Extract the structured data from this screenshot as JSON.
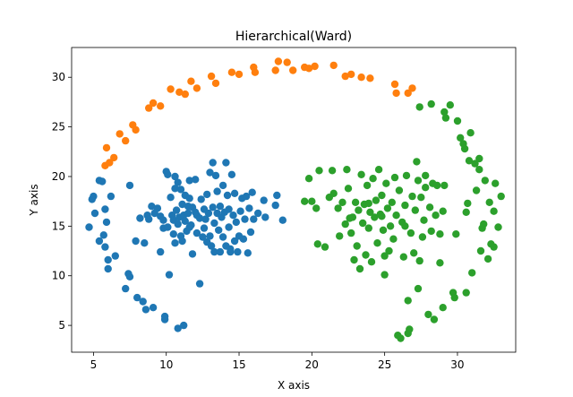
{
  "chart_data": {
    "type": "scatter",
    "title": "Hierarchical(Ward)",
    "xlabel": "X axis",
    "ylabel": "Y axis",
    "xlim": [
      3.5,
      34.0
    ],
    "ylim": [
      2.3,
      33.0
    ],
    "xticks": [
      5,
      10,
      15,
      20,
      25,
      30
    ],
    "yticks": [
      5,
      10,
      15,
      20,
      25,
      30
    ],
    "grid": false,
    "legend": "none",
    "series": [
      {
        "color": "#1f77b4",
        "points": [
          [
            4.7,
            14.9
          ],
          [
            4.9,
            17.7
          ],
          [
            5.0,
            18.0
          ],
          [
            5.1,
            16.3
          ],
          [
            5.4,
            19.6
          ],
          [
            5.6,
            19.5
          ],
          [
            5.4,
            13.5
          ],
          [
            5.7,
            14.1
          ],
          [
            5.8,
            12.9
          ],
          [
            5.8,
            16.7
          ],
          [
            5.9,
            15.4
          ],
          [
            6.0,
            11.6
          ],
          [
            6.0,
            10.7
          ],
          [
            6.2,
            18.0
          ],
          [
            6.5,
            12.0
          ],
          [
            7.2,
            8.7
          ],
          [
            7.4,
            10.2
          ],
          [
            7.5,
            9.9
          ],
          [
            7.5,
            19.1
          ],
          [
            7.9,
            13.5
          ],
          [
            8.0,
            7.8
          ],
          [
            8.4,
            7.4
          ],
          [
            8.6,
            6.6
          ],
          [
            9.1,
            6.8
          ],
          [
            9.9,
            5.6
          ],
          [
            9.9,
            5.9
          ],
          [
            10.8,
            4.7
          ],
          [
            11.2,
            5.0
          ],
          [
            8.2,
            15.8
          ],
          [
            8.5,
            13.3
          ],
          [
            8.7,
            16.1
          ],
          [
            8.8,
            15.7
          ],
          [
            9.0,
            17.0
          ],
          [
            9.2,
            16.3
          ],
          [
            9.4,
            16.8
          ],
          [
            9.6,
            16.0
          ],
          [
            9.6,
            12.4
          ],
          [
            9.8,
            14.8
          ],
          [
            9.8,
            15.6
          ],
          [
            10.0,
            20.5
          ],
          [
            10.1,
            20.2
          ],
          [
            10.1,
            14.9
          ],
          [
            10.2,
            10.1
          ],
          [
            10.3,
            17.9
          ],
          [
            10.4,
            16.1
          ],
          [
            10.5,
            15.6
          ],
          [
            10.5,
            14.2
          ],
          [
            10.6,
            20.0
          ],
          [
            10.6,
            18.8
          ],
          [
            10.7,
            16.6
          ],
          [
            10.8,
            19.4
          ],
          [
            10.8,
            15.2
          ],
          [
            10.9,
            15.9
          ],
          [
            11.0,
            18.7
          ],
          [
            11.0,
            14.0
          ],
          [
            11.1,
            17.2
          ],
          [
            11.1,
            13.5
          ],
          [
            11.2,
            16.1
          ],
          [
            11.3,
            18.1
          ],
          [
            11.3,
            15.5
          ],
          [
            11.4,
            14.5
          ],
          [
            11.5,
            17.0
          ],
          [
            11.5,
            16.3
          ],
          [
            11.6,
            19.6
          ],
          [
            11.6,
            17.8
          ],
          [
            11.7,
            15.1
          ],
          [
            11.8,
            16.9
          ],
          [
            11.8,
            12.2
          ],
          [
            12.0,
            19.7
          ],
          [
            12.0,
            16.4
          ],
          [
            12.1,
            14.3
          ],
          [
            12.1,
            16.1
          ],
          [
            12.3,
            15.8
          ],
          [
            12.3,
            9.2
          ],
          [
            12.4,
            17.7
          ],
          [
            12.5,
            13.9
          ],
          [
            12.6,
            16.7
          ],
          [
            12.6,
            14.8
          ],
          [
            12.7,
            15.7
          ],
          [
            12.8,
            18.2
          ],
          [
            12.8,
            13.4
          ],
          [
            12.9,
            16.3
          ],
          [
            13.0,
            20.4
          ],
          [
            13.0,
            14.0
          ],
          [
            13.1,
            13.0
          ],
          [
            13.2,
            21.4
          ],
          [
            13.2,
            16.9
          ],
          [
            13.3,
            12.4
          ],
          [
            13.3,
            15.3
          ],
          [
            13.4,
            20.1
          ],
          [
            13.5,
            18.5
          ],
          [
            13.5,
            16.3
          ],
          [
            13.6,
            14.6
          ],
          [
            13.7,
            17.0
          ],
          [
            13.7,
            12.4
          ],
          [
            13.8,
            15.9
          ],
          [
            13.9,
            19.1
          ],
          [
            13.9,
            13.9
          ],
          [
            14.0,
            16.4
          ],
          [
            14.1,
            13.0
          ],
          [
            14.1,
            21.4
          ],
          [
            14.2,
            18.1
          ],
          [
            14.3,
            14.9
          ],
          [
            14.3,
            16.7
          ],
          [
            14.4,
            12.7
          ],
          [
            14.5,
            20.2
          ],
          [
            14.6,
            16.1
          ],
          [
            14.7,
            13.5
          ],
          [
            14.7,
            18.3
          ],
          [
            14.8,
            15.4
          ],
          [
            14.9,
            12.4
          ],
          [
            15.0,
            14.0
          ],
          [
            15.1,
            16.5
          ],
          [
            15.2,
            17.8
          ],
          [
            15.3,
            13.7
          ],
          [
            15.4,
            15.7
          ],
          [
            15.5,
            18.0
          ],
          [
            15.6,
            12.3
          ],
          [
            15.7,
            16.8
          ],
          [
            15.8,
            14.4
          ],
          [
            15.9,
            18.4
          ],
          [
            16.0,
            15.7
          ],
          [
            16.3,
            16.3
          ],
          [
            16.7,
            17.6
          ],
          [
            16.8,
            15.9
          ],
          [
            17.5,
            17.1
          ],
          [
            17.6,
            18.1
          ],
          [
            18.0,
            15.6
          ],
          [
            14.4,
            12.4
          ],
          [
            11.6,
            14.9
          ],
          [
            10.6,
            13.3
          ]
        ]
      },
      {
        "color": "#ff7f0e",
        "points": [
          [
            5.8,
            21.1
          ],
          [
            5.9,
            22.9
          ],
          [
            6.1,
            21.4
          ],
          [
            6.4,
            21.9
          ],
          [
            6.8,
            24.3
          ],
          [
            7.2,
            23.6
          ],
          [
            7.7,
            25.2
          ],
          [
            7.9,
            24.7
          ],
          [
            8.8,
            26.9
          ],
          [
            9.1,
            27.4
          ],
          [
            9.6,
            27.1
          ],
          [
            10.3,
            28.8
          ],
          [
            10.9,
            28.5
          ],
          [
            11.3,
            28.3
          ],
          [
            11.7,
            29.6
          ],
          [
            12.1,
            28.9
          ],
          [
            13.1,
            30.1
          ],
          [
            13.4,
            29.4
          ],
          [
            14.5,
            30.5
          ],
          [
            15.0,
            30.3
          ],
          [
            16.0,
            31.0
          ],
          [
            16.1,
            30.5
          ],
          [
            17.5,
            30.7
          ],
          [
            17.7,
            31.6
          ],
          [
            18.3,
            31.5
          ],
          [
            18.7,
            30.7
          ],
          [
            19.5,
            31.0
          ],
          [
            19.8,
            30.9
          ],
          [
            20.2,
            31.1
          ],
          [
            21.5,
            31.2
          ],
          [
            22.3,
            30.1
          ],
          [
            22.7,
            30.3
          ],
          [
            23.4,
            30.0
          ],
          [
            24.0,
            29.9
          ],
          [
            25.7,
            29.3
          ],
          [
            25.8,
            28.4
          ],
          [
            26.6,
            28.4
          ],
          [
            26.9,
            28.9
          ]
        ]
      },
      {
        "color": "#2ca02c",
        "points": [
          [
            19.5,
            17.5
          ],
          [
            19.8,
            19.8
          ],
          [
            20.0,
            17.5
          ],
          [
            20.3,
            16.8
          ],
          [
            20.5,
            20.6
          ],
          [
            20.4,
            13.2
          ],
          [
            20.9,
            12.9
          ],
          [
            21.2,
            17.9
          ],
          [
            21.5,
            18.3
          ],
          [
            21.8,
            16.8
          ],
          [
            21.9,
            14.0
          ],
          [
            22.1,
            17.4
          ],
          [
            22.3,
            15.2
          ],
          [
            22.4,
            20.7
          ],
          [
            22.5,
            18.8
          ],
          [
            22.6,
            15.8
          ],
          [
            22.7,
            14.3
          ],
          [
            22.8,
            15.9
          ],
          [
            22.9,
            11.6
          ],
          [
            23.0,
            17.4
          ],
          [
            23.1,
            13.0
          ],
          [
            23.2,
            16.6
          ],
          [
            23.3,
            10.7
          ],
          [
            23.4,
            20.2
          ],
          [
            23.5,
            15.3
          ],
          [
            23.6,
            17.2
          ],
          [
            23.7,
            12.1
          ],
          [
            23.8,
            19.1
          ],
          [
            23.9,
            14.8
          ],
          [
            24.0,
            16.4
          ],
          [
            24.1,
            11.4
          ],
          [
            24.2,
            19.8
          ],
          [
            24.3,
            15.9
          ],
          [
            24.4,
            17.6
          ],
          [
            24.5,
            13.3
          ],
          [
            24.6,
            20.7
          ],
          [
            24.7,
            16.2
          ],
          [
            24.8,
            18.1
          ],
          [
            24.9,
            14.6
          ],
          [
            25.0,
            10.1
          ],
          [
            25.1,
            19.3
          ],
          [
            25.2,
            16.8
          ],
          [
            25.3,
            12.5
          ],
          [
            25.4,
            15.0
          ],
          [
            25.5,
            17.4
          ],
          [
            25.6,
            13.7
          ],
          [
            25.7,
            19.9
          ],
          [
            25.8,
            16.1
          ],
          [
            25.9,
            4.0
          ],
          [
            26.0,
            18.6
          ],
          [
            26.1,
            3.7
          ],
          [
            26.2,
            15.4
          ],
          [
            26.3,
            11.9
          ],
          [
            26.4,
            17.1
          ],
          [
            26.5,
            20.1
          ],
          [
            26.6,
            4.2
          ],
          [
            26.7,
            4.6
          ],
          [
            26.8,
            14.3
          ],
          [
            26.9,
            18.0
          ],
          [
            27.0,
            12.3
          ],
          [
            27.1,
            16.6
          ],
          [
            27.2,
            21.5
          ],
          [
            27.3,
            19.6
          ],
          [
            27.4,
            11.5
          ],
          [
            27.5,
            17.9
          ],
          [
            27.6,
            13.9
          ],
          [
            27.7,
            15.6
          ],
          [
            27.8,
            20.1
          ],
          [
            28.0,
            6.1
          ],
          [
            28.1,
            16.9
          ],
          [
            28.2,
            14.5
          ],
          [
            28.3,
            19.3
          ],
          [
            28.4,
            5.6
          ],
          [
            28.5,
            16.1
          ],
          [
            28.6,
            19.1
          ],
          [
            28.8,
            14.2
          ],
          [
            29.0,
            6.8
          ],
          [
            29.0,
            16.5
          ],
          [
            29.1,
            19.1
          ],
          [
            29.2,
            25.9
          ],
          [
            29.5,
            27.2
          ],
          [
            29.7,
            8.3
          ],
          [
            29.8,
            7.8
          ],
          [
            30.0,
            25.6
          ],
          [
            30.2,
            23.9
          ],
          [
            30.4,
            23.3
          ],
          [
            30.5,
            22.8
          ],
          [
            30.6,
            8.3
          ],
          [
            30.7,
            17.3
          ],
          [
            30.8,
            21.6
          ],
          [
            31.0,
            10.3
          ],
          [
            31.2,
            21.3
          ],
          [
            31.3,
            18.6
          ],
          [
            31.5,
            20.7
          ],
          [
            31.6,
            12.5
          ],
          [
            31.7,
            14.8
          ],
          [
            31.9,
            19.6
          ],
          [
            32.1,
            11.7
          ],
          [
            32.2,
            17.4
          ],
          [
            32.3,
            13.2
          ],
          [
            32.5,
            16.5
          ],
          [
            32.6,
            19.3
          ],
          [
            32.8,
            14.9
          ],
          [
            33.0,
            18.0
          ],
          [
            30.6,
            16.4
          ],
          [
            29.9,
            14.2
          ],
          [
            31.8,
            15.2
          ],
          [
            27.8,
            18.9
          ],
          [
            28.8,
            11.3
          ],
          [
            25.0,
            12.0
          ],
          [
            23.9,
            17.3
          ],
          [
            24.8,
            16.0
          ],
          [
            26.4,
            15.0
          ],
          [
            21.4,
            20.6
          ],
          [
            27.4,
            27.0
          ],
          [
            28.2,
            27.3
          ],
          [
            29.1,
            26.5
          ],
          [
            30.9,
            24.4
          ],
          [
            31.5,
            21.8
          ],
          [
            32.5,
            12.9
          ],
          [
            26.6,
            7.5
          ],
          [
            27.3,
            8.7
          ]
        ]
      }
    ]
  }
}
